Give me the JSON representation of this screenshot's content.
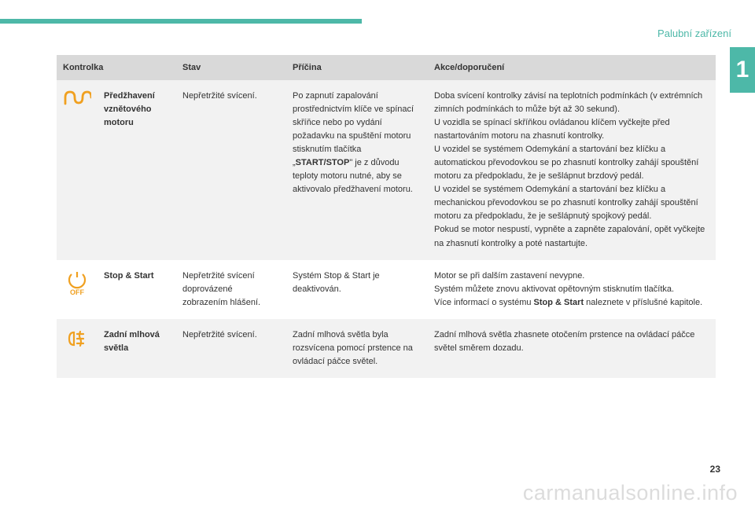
{
  "header": {
    "section_title": "Palubní zařízení",
    "tab_number": "1"
  },
  "table": {
    "columns": [
      "Kontrolka",
      "Stav",
      "Příčina",
      "Akce/doporučení"
    ],
    "rows": [
      {
        "icon": "preheat-coil",
        "icon_color": "#f0a020",
        "name": "Předžhavení vznětového motoru",
        "state": "Nepřetržité svícení.",
        "cause_parts": [
          "Po zapnutí zapalování prostřednictvím klíče ve spínací skříňce nebo po vydání požadavku na spuštění motoru stisknutím tlačítka „",
          "START/STOP",
          "\" je z důvodu teploty motoru nutné, aby se aktivovalo předžhavení motoru."
        ],
        "action": "Doba svícení kontrolky závisí na teplotních podmínkách (v extrémních zimních podmínkách to může být až 30 sekund).\nU vozidla se spínací skříňkou ovládanou klíčem vyčkejte před nastartováním motoru na zhasnutí kontrolky.\nU vozidel se systémem Odemykání a startování bez klíčku a automatickou převodovkou se po zhasnutí kontrolky zahájí spouštění motoru za předpokladu, že je sešlápnut brzdový pedál.\nU vozidel se systémem Odemykání a startování bez klíčku a mechanickou převodovkou se po zhasnutí kontrolky zahájí spouštění motoru za předpokladu, že je sešlápnutý spojkový pedál.\nPokud se motor nespustí, vypněte a zapněte zapalování, opět vyčkejte na zhasnutí kontrolky a poté nastartujte."
      },
      {
        "icon": "stop-start-off",
        "icon_color": "#f0a020",
        "name": "Stop & Start",
        "state": "Nepřetržité svícení doprovázené zobrazením hlášení.",
        "cause": "Systém Stop & Start je deaktivován.",
        "action_parts": [
          "Motor se při dalším zastavení nevypne.\nSystém můžete znovu aktivovat opětovným stisknutím tlačítka.\nVíce informací o systému ",
          "Stop & Start",
          " naleznete v příslušné kapitole."
        ]
      },
      {
        "icon": "rear-fog",
        "icon_color": "#f0a020",
        "name": "Zadní mlhová světla",
        "state": "Nepřetržité svícení.",
        "cause": "Zadní mlhová světla byla rozsvícena pomocí prstence na ovládací páčce světel.",
        "action": "Zadní mlhová světla zhasnete otočením prstence na ovládací páčce světel směrem dozadu."
      }
    ]
  },
  "footer": {
    "page_number": "23",
    "watermark": "carmanualsonline.info"
  }
}
